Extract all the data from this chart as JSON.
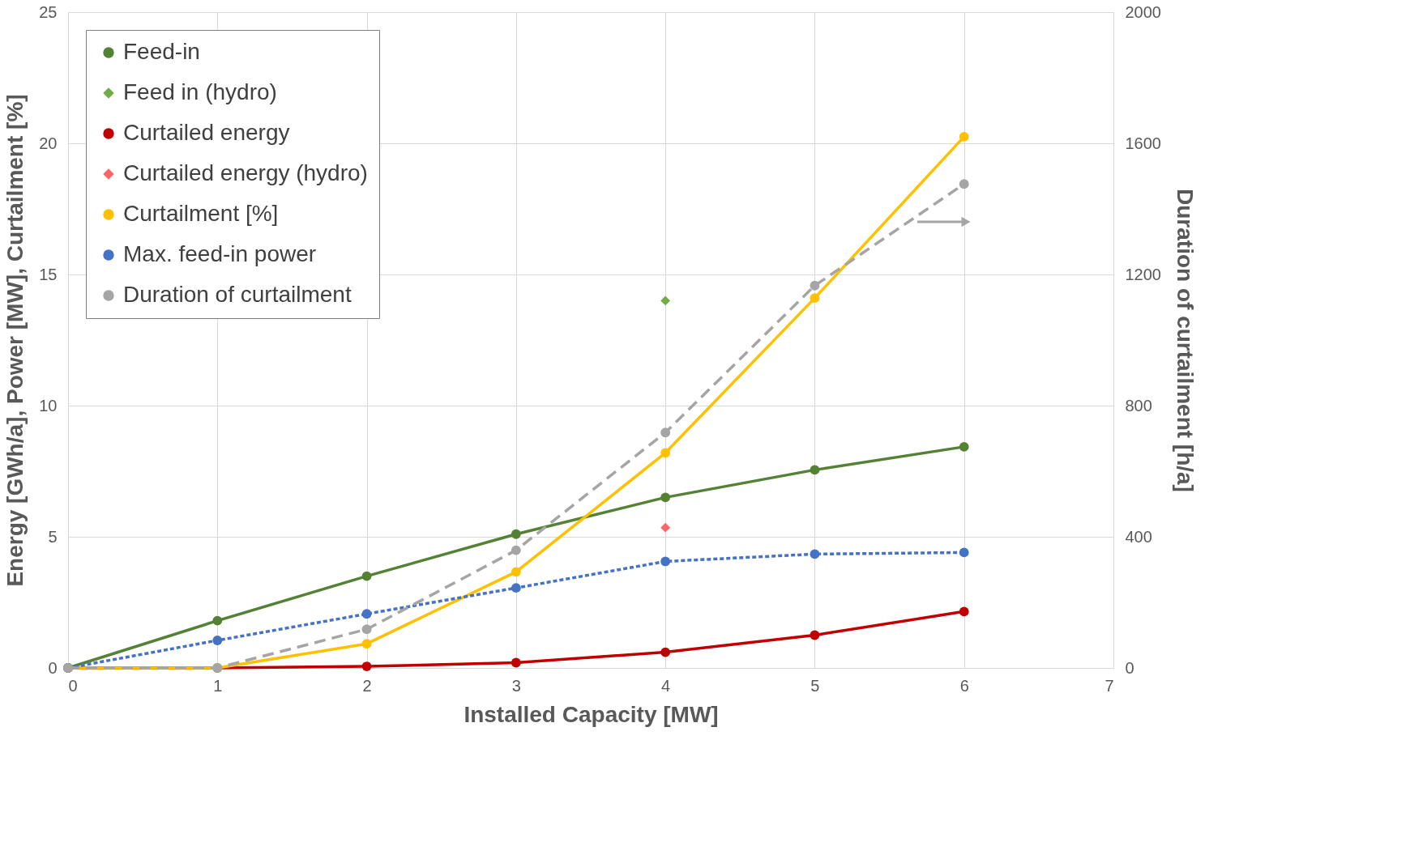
{
  "chart_data": {
    "type": "line",
    "xlabel": "Installed Capacity [MW]",
    "ylabel": "Energy [GWh/a],  Power [MW],  Curtailment [%]",
    "y2label": "Duration of curtailment [h/a]",
    "x": [
      0,
      1,
      2,
      3,
      4,
      5,
      6
    ],
    "series": [
      {
        "name": "Feed-in",
        "color": "#548235",
        "marker": "circle",
        "line_style": "solid",
        "values": [
          0,
          1.8,
          3.5,
          5.1,
          6.5,
          7.55,
          8.43
        ]
      },
      {
        "name": "Feed in (hydro)",
        "type": "scatter",
        "color": "#70ad47",
        "marker": "diamond",
        "x": [
          4
        ],
        "values": [
          14.0
        ]
      },
      {
        "name": "Curtailed energy",
        "color": "#c00000",
        "marker": "circle",
        "line_style": "solid",
        "values": [
          0,
          0,
          0.06,
          0.2,
          0.6,
          1.25,
          2.15
        ]
      },
      {
        "name": "Curtailed energy (hydro)",
        "type": "scatter",
        "color": "#ff6565",
        "marker": "diamond",
        "x": [
          4
        ],
        "values": [
          5.35
        ]
      },
      {
        "name": "Curtailment [%]",
        "color": "#ffc000",
        "marker": "circle",
        "line_style": "solid",
        "values": [
          0,
          0,
          0.92,
          3.66,
          8.2,
          14.1,
          20.25
        ]
      },
      {
        "name": "Max. feed-in power",
        "color": "#4472c4",
        "marker": "circle",
        "line_style": "dotted",
        "values": [
          0,
          1.05,
          2.06,
          3.05,
          4.06,
          4.34,
          4.4
        ]
      },
      {
        "name": "Duration of curtailment",
        "color": "#a5a5a5",
        "marker": "circle",
        "line_style": "dashed",
        "axis": "y2",
        "values": [
          0,
          0,
          118,
          359,
          718,
          1166,
          1476
        ]
      }
    ],
    "xlim": [
      0,
      7
    ],
    "xticks": [
      0,
      1,
      2,
      3,
      4,
      5,
      6,
      7
    ],
    "ylim": [
      0,
      25
    ],
    "yticks": [
      0,
      5,
      10,
      15,
      20,
      25
    ],
    "y2lim": [
      0,
      2000
    ],
    "y2ticks": [
      0,
      400,
      800,
      1200,
      1600,
      2000
    ],
    "grid": true,
    "legend": "top left"
  }
}
